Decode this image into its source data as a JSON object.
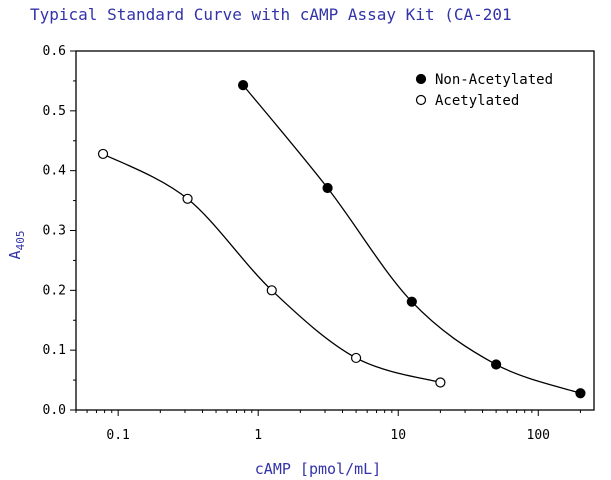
{
  "chart_data": {
    "type": "scatter",
    "title": "Typical Standard Curve with cAMP Assay Kit (CA-201",
    "xlabel": "cAMP [pmol/mL]",
    "ylabel": "A",
    "ylabel_sub": "405",
    "x_scale": "log",
    "xlim": [
      0.05,
      250
    ],
    "ylim": [
      0.0,
      0.6
    ],
    "x_ticks": [
      {
        "value": 0.1,
        "label": "0.1"
      },
      {
        "value": 1,
        "label": "1"
      },
      {
        "value": 10,
        "label": "10"
      },
      {
        "value": 100,
        "label": "100"
      }
    ],
    "y_ticks": [
      {
        "value": 0.0,
        "label": "0.0"
      },
      {
        "value": 0.1,
        "label": "0.1"
      },
      {
        "value": 0.2,
        "label": "0.2"
      },
      {
        "value": 0.3,
        "label": "0.3"
      },
      {
        "value": 0.4,
        "label": "0.4"
      },
      {
        "value": 0.5,
        "label": "0.5"
      },
      {
        "value": 0.6,
        "label": "0.6"
      }
    ],
    "grid": false,
    "legend_position": "top-right",
    "series": [
      {
        "name": "Non-Acetylated",
        "marker": "filled-circle",
        "color": "#000000",
        "x": [
          0.78,
          3.13,
          12.5,
          50,
          200
        ],
        "y": [
          0.543,
          0.371,
          0.181,
          0.076,
          0.028
        ]
      },
      {
        "name": "Acetylated",
        "marker": "open-circle",
        "color": "#000000",
        "x": [
          0.078,
          0.313,
          1.25,
          5,
          20
        ],
        "y": [
          0.428,
          0.353,
          0.2,
          0.087,
          0.046
        ]
      }
    ]
  }
}
